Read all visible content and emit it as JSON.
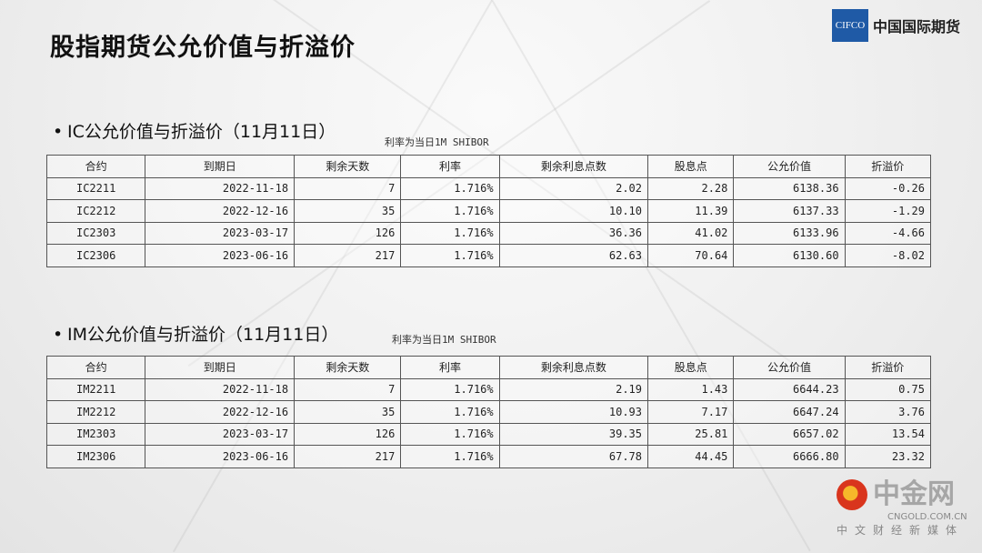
{
  "title": "股指期货公允价值与折溢价",
  "logo": {
    "badge": "CIFCO",
    "name": "中国国际期货"
  },
  "columns": [
    "合约",
    "到期日",
    "剩余天数",
    "利率",
    "剩余利息点数",
    "股息点",
    "公允价值",
    "折溢价"
  ],
  "ic": {
    "heading": "IC公允价值与折溢价（11月11日）",
    "note": "利率为当日1M SHIBOR",
    "rows": [
      [
        "IC2211",
        "2022-11-18",
        "7",
        "1.716%",
        "2.02",
        "2.28",
        "6138.36",
        "-0.26"
      ],
      [
        "IC2212",
        "2022-12-16",
        "35",
        "1.716%",
        "10.10",
        "11.39",
        "6137.33",
        "-1.29"
      ],
      [
        "IC2303",
        "2023-03-17",
        "126",
        "1.716%",
        "36.36",
        "41.02",
        "6133.96",
        "-4.66"
      ],
      [
        "IC2306",
        "2023-06-16",
        "217",
        "1.716%",
        "62.63",
        "70.64",
        "6130.60",
        "-8.02"
      ]
    ]
  },
  "im": {
    "heading": "IM公允价值与折溢价（11月11日）",
    "note": "利率为当日1M SHIBOR",
    "rows": [
      [
        "IM2211",
        "2022-11-18",
        "7",
        "1.716%",
        "2.19",
        "1.43",
        "6644.23",
        "0.75"
      ],
      [
        "IM2212",
        "2022-12-16",
        "35",
        "1.716%",
        "10.93",
        "7.17",
        "6647.24",
        "3.76"
      ],
      [
        "IM2303",
        "2023-03-17",
        "126",
        "1.716%",
        "39.35",
        "25.81",
        "6657.02",
        "13.54"
      ],
      [
        "IM2306",
        "2023-06-16",
        "217",
        "1.716%",
        "67.78",
        "44.45",
        "6666.80",
        "23.32"
      ]
    ]
  },
  "watermark": {
    "name": "中金网",
    "domain": "CNGOLD.COM.CN",
    "tagline": "中文财经新媒体"
  }
}
